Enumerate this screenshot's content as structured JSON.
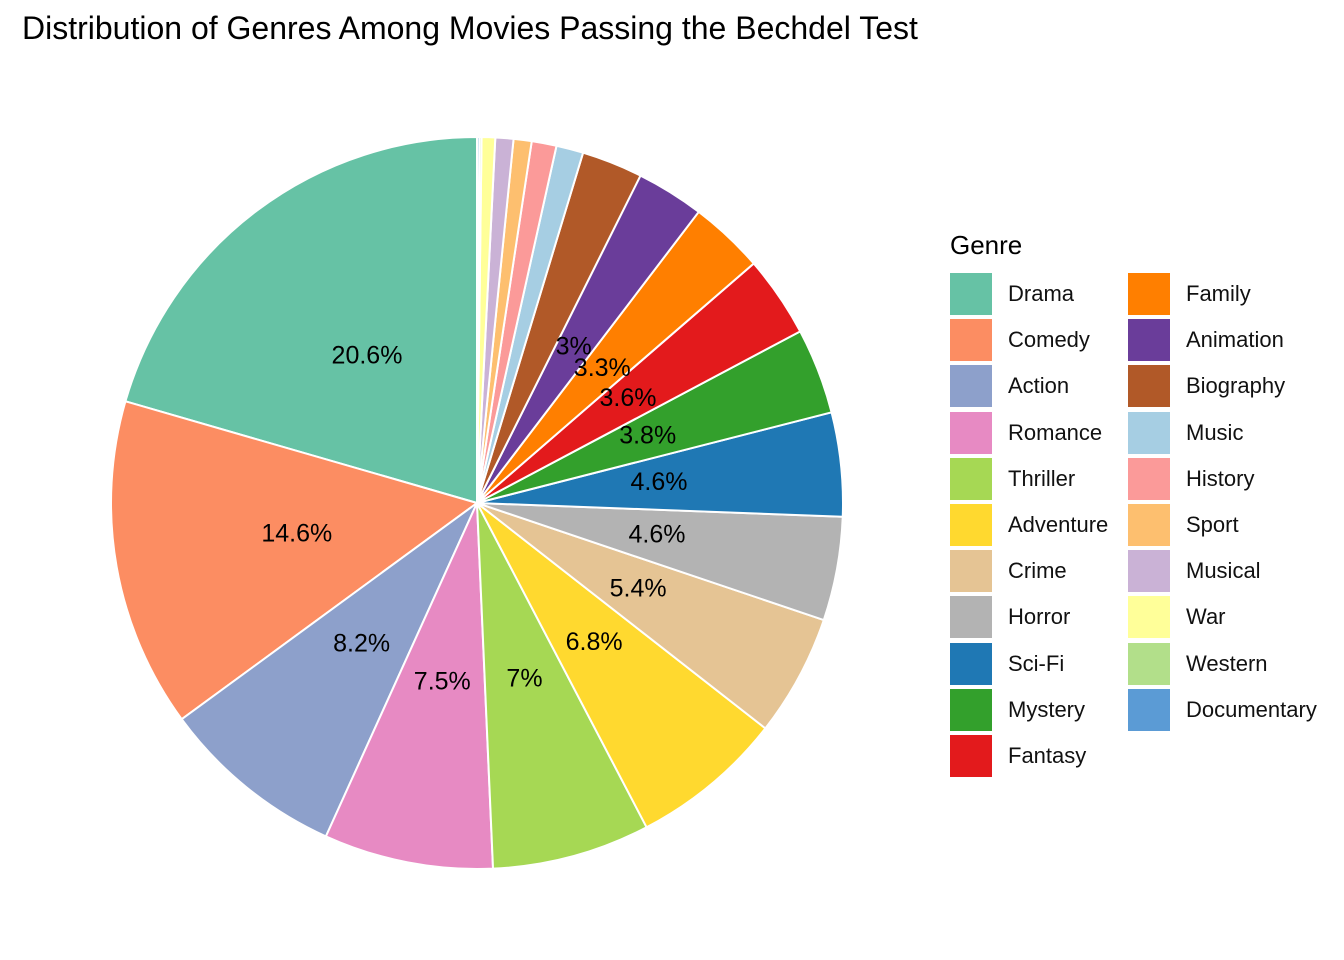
{
  "chart_data": {
    "type": "pie",
    "title": "Distribution of Genres Among Movies Passing the Bechdel Test",
    "legend_title": "Genre",
    "legend_placement": "right",
    "categories": [
      "Drama",
      "Comedy",
      "Action",
      "Romance",
      "Thriller",
      "Adventure",
      "Crime",
      "Horror",
      "Sci-Fi",
      "Mystery",
      "Fantasy",
      "Family",
      "Animation",
      "Biography",
      "Music",
      "History",
      "Sport",
      "Musical",
      "War",
      "Western",
      "Documentary"
    ],
    "values": [
      20.6,
      14.6,
      8.2,
      7.5,
      7.0,
      6.8,
      5.4,
      4.6,
      4.6,
      3.8,
      3.6,
      3.3,
      3.0,
      2.7,
      1.2,
      1.1,
      0.8,
      0.8,
      0.6,
      0.1,
      0.1
    ],
    "labels": [
      "20.6%",
      "14.6%",
      "8.2%",
      "7.5%",
      "7%",
      "6.8%",
      "5.4%",
      "4.6%",
      "4.6%",
      "3.8%",
      "3.6%",
      "3.3%",
      "3%",
      "",
      "",
      "",
      "",
      "",
      "",
      "",
      ""
    ],
    "colors": [
      "#66C2A5",
      "#FC8D62",
      "#8DA0CB",
      "#E78AC3",
      "#A6D854",
      "#FFD92F",
      "#E5C494",
      "#B3B3B3",
      "#1F78B4",
      "#33A02C",
      "#E31A1C",
      "#FF7F00",
      "#6A3D9A",
      "#B15928",
      "#A6CEE3",
      "#FB9A99",
      "#FDBF6F",
      "#CAB2D6",
      "#FFFF99",
      "#B2DF8A",
      "#5B9BD5"
    ]
  }
}
